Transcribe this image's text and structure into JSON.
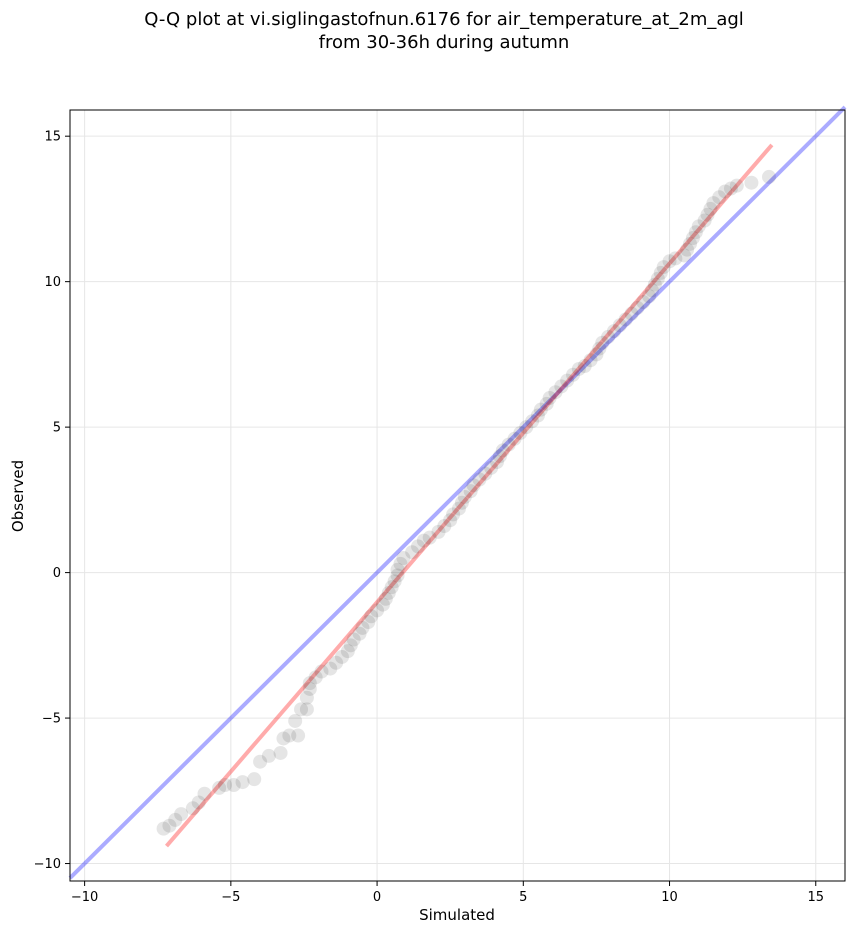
{
  "chart_data": {
    "type": "scatter",
    "title": [
      "Q-Q plot at vi.siglingastofnun.6176 for air_temperature_at_2m_agl",
      "from 30-36h during autumn"
    ],
    "xlabel": "Simulated",
    "ylabel": "Observed",
    "xlim": [
      -10.5,
      16
    ],
    "ylim": [
      -10.6,
      15.9
    ],
    "xticks": [
      -10,
      -5,
      0,
      5,
      10,
      15
    ],
    "yticks": [
      -10,
      -5,
      0,
      5,
      10,
      15
    ],
    "xtick_labels": [
      "−10",
      "−5",
      "0",
      "5",
      "10",
      "15"
    ],
    "ytick_labels": [
      "−10",
      "−5",
      "0",
      "5",
      "10",
      "15"
    ],
    "grid": true,
    "reference_line": {
      "x": [
        -10.5,
        16
      ],
      "y": [
        -10.5,
        16
      ],
      "color": "#0000ff"
    },
    "fit_line": {
      "x": [
        -7.2,
        13.5
      ],
      "y": [
        -9.4,
        14.7
      ],
      "color": "#ff0000"
    },
    "point_color": "#000000",
    "points": [
      [
        -7.3,
        -8.8
      ],
      [
        -7.1,
        -8.7
      ],
      [
        -6.9,
        -8.5
      ],
      [
        -6.7,
        -8.3
      ],
      [
        -6.3,
        -8.1
      ],
      [
        -6.1,
        -7.9
      ],
      [
        -5.9,
        -7.6
      ],
      [
        -5.4,
        -7.4
      ],
      [
        -5.2,
        -7.3
      ],
      [
        -4.9,
        -7.3
      ],
      [
        -4.6,
        -7.2
      ],
      [
        -4.2,
        -7.1
      ],
      [
        -4.0,
        -6.5
      ],
      [
        -3.7,
        -6.3
      ],
      [
        -3.3,
        -6.2
      ],
      [
        -3.2,
        -5.7
      ],
      [
        -3.0,
        -5.6
      ],
      [
        -2.7,
        -5.6
      ],
      [
        -2.8,
        -5.1
      ],
      [
        -2.6,
        -4.7
      ],
      [
        -2.4,
        -4.7
      ],
      [
        -2.4,
        -4.3
      ],
      [
        -2.3,
        -4.0
      ],
      [
        -2.3,
        -3.8
      ],
      [
        -2.1,
        -3.6
      ],
      [
        -1.9,
        -3.4
      ],
      [
        -1.6,
        -3.3
      ],
      [
        -1.4,
        -3.1
      ],
      [
        -1.2,
        -2.9
      ],
      [
        -1.0,
        -2.7
      ],
      [
        -0.9,
        -2.5
      ],
      [
        -0.8,
        -2.3
      ],
      [
        -0.6,
        -2.1
      ],
      [
        -0.5,
        -1.9
      ],
      [
        -0.3,
        -1.7
      ],
      [
        -0.2,
        -1.5
      ],
      [
        0.0,
        -1.3
      ],
      [
        0.2,
        -1.1
      ],
      [
        0.3,
        -0.9
      ],
      [
        0.4,
        -0.7
      ],
      [
        0.5,
        -0.5
      ],
      [
        0.6,
        -0.3
      ],
      [
        0.7,
        -0.1
      ],
      [
        0.7,
        0.1
      ],
      [
        0.8,
        0.3
      ],
      [
        0.9,
        0.5
      ],
      [
        1.2,
        0.7
      ],
      [
        1.4,
        0.9
      ],
      [
        1.6,
        1.1
      ],
      [
        1.8,
        1.2
      ],
      [
        2.1,
        1.4
      ],
      [
        2.3,
        1.6
      ],
      [
        2.5,
        1.8
      ],
      [
        2.6,
        2.0
      ],
      [
        2.8,
        2.2
      ],
      [
        2.9,
        2.4
      ],
      [
        3.0,
        2.6
      ],
      [
        3.2,
        2.8
      ],
      [
        3.3,
        3.0
      ],
      [
        3.5,
        3.2
      ],
      [
        3.7,
        3.4
      ],
      [
        3.9,
        3.6
      ],
      [
        4.1,
        3.8
      ],
      [
        4.2,
        4.0
      ],
      [
        4.3,
        4.2
      ],
      [
        4.5,
        4.4
      ],
      [
        4.7,
        4.6
      ],
      [
        4.9,
        4.8
      ],
      [
        5.1,
        5.0
      ],
      [
        5.3,
        5.2
      ],
      [
        5.5,
        5.4
      ],
      [
        5.6,
        5.6
      ],
      [
        5.8,
        5.8
      ],
      [
        5.9,
        6.0
      ],
      [
        6.1,
        6.2
      ],
      [
        6.3,
        6.4
      ],
      [
        6.5,
        6.6
      ],
      [
        6.7,
        6.8
      ],
      [
        6.9,
        7.0
      ],
      [
        7.1,
        7.1
      ],
      [
        7.3,
        7.3
      ],
      [
        7.5,
        7.5
      ],
      [
        7.6,
        7.7
      ],
      [
        7.7,
        7.9
      ],
      [
        7.9,
        8.1
      ],
      [
        8.1,
        8.3
      ],
      [
        8.3,
        8.5
      ],
      [
        8.5,
        8.7
      ],
      [
        8.7,
        8.9
      ],
      [
        8.9,
        9.1
      ],
      [
        9.1,
        9.3
      ],
      [
        9.3,
        9.5
      ],
      [
        9.4,
        9.7
      ],
      [
        9.5,
        9.9
      ],
      [
        9.6,
        10.1
      ],
      [
        9.7,
        10.3
      ],
      [
        9.8,
        10.5
      ],
      [
        10.0,
        10.7
      ],
      [
        10.2,
        10.8
      ],
      [
        10.5,
        10.9
      ],
      [
        10.6,
        11.1
      ],
      [
        10.7,
        11.3
      ],
      [
        10.8,
        11.5
      ],
      [
        10.9,
        11.7
      ],
      [
        11.0,
        11.9
      ],
      [
        11.2,
        12.1
      ],
      [
        11.3,
        12.3
      ],
      [
        11.4,
        12.5
      ],
      [
        11.5,
        12.7
      ],
      [
        11.7,
        12.9
      ],
      [
        11.9,
        13.1
      ],
      [
        12.1,
        13.2
      ],
      [
        12.3,
        13.3
      ],
      [
        12.8,
        13.4
      ],
      [
        13.4,
        13.6
      ]
    ]
  }
}
